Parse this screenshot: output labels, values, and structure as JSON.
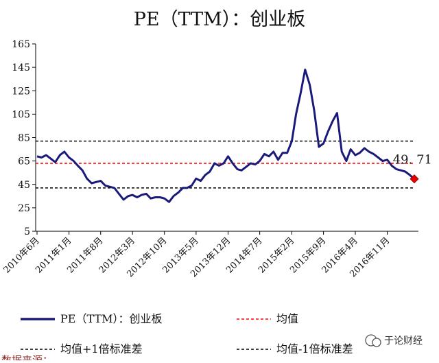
{
  "chart_data": {
    "type": "line",
    "title": "PE（TTM）：创业板",
    "ylim": [
      5,
      165
    ],
    "yticks": [
      165,
      145,
      125,
      105,
      85,
      65,
      45,
      25,
      5
    ],
    "xticks": [
      "2010年6月",
      "2011年1月",
      "2011年8月",
      "2012年3月",
      "2012年10月",
      "2013年5月",
      "2013年12月",
      "2014年7月",
      "2015年2月",
      "2015年9月",
      "2016年4月",
      "2016年11月"
    ],
    "x_start": "2010-06",
    "x_end": "2017-05",
    "grid": false,
    "legend_position": "bottom",
    "series": [
      {
        "name": "PE（TTM）：创业板",
        "color": "#1a1a7a",
        "points": [
          [
            "2010-06-01",
            69
          ],
          [
            "2010-07-01",
            68
          ],
          [
            "2010-08-01",
            70
          ],
          [
            "2010-09-01",
            67
          ],
          [
            "2010-10-01",
            64
          ],
          [
            "2010-11-01",
            70
          ],
          [
            "2010-12-01",
            73
          ],
          [
            "2011-01-01",
            68
          ],
          [
            "2011-02-01",
            65
          ],
          [
            "2011-03-01",
            61
          ],
          [
            "2011-04-01",
            57
          ],
          [
            "2011-05-01",
            50
          ],
          [
            "2011-06-01",
            46
          ],
          [
            "2011-07-01",
            47
          ],
          [
            "2011-08-01",
            48
          ],
          [
            "2011-09-01",
            44
          ],
          [
            "2011-10-01",
            43
          ],
          [
            "2011-11-01",
            42
          ],
          [
            "2011-12-01",
            37
          ],
          [
            "2012-01-01",
            32
          ],
          [
            "2012-02-01",
            35
          ],
          [
            "2012-03-01",
            36
          ],
          [
            "2012-04-01",
            34
          ],
          [
            "2012-05-01",
            36
          ],
          [
            "2012-06-01",
            37
          ],
          [
            "2012-07-01",
            33
          ],
          [
            "2012-08-01",
            34
          ],
          [
            "2012-09-01",
            34
          ],
          [
            "2012-10-01",
            33
          ],
          [
            "2012-11-01",
            30
          ],
          [
            "2012-12-01",
            35
          ],
          [
            "2013-01-01",
            38
          ],
          [
            "2013-02-01",
            42
          ],
          [
            "2013-03-01",
            42
          ],
          [
            "2013-04-01",
            44
          ],
          [
            "2013-05-01",
            50
          ],
          [
            "2013-06-01",
            48
          ],
          [
            "2013-07-01",
            53
          ],
          [
            "2013-08-01",
            56
          ],
          [
            "2013-09-01",
            63
          ],
          [
            "2013-10-01",
            61
          ],
          [
            "2013-11-01",
            63
          ],
          [
            "2013-12-01",
            69
          ],
          [
            "2014-01-01",
            63
          ],
          [
            "2014-02-01",
            58
          ],
          [
            "2014-03-01",
            57
          ],
          [
            "2014-04-01",
            60
          ],
          [
            "2014-05-01",
            63
          ],
          [
            "2014-06-01",
            62
          ],
          [
            "2014-07-01",
            65
          ],
          [
            "2014-08-01",
            71
          ],
          [
            "2014-09-01",
            69
          ],
          [
            "2014-10-01",
            73
          ],
          [
            "2014-11-01",
            66
          ],
          [
            "2014-12-01",
            72
          ],
          [
            "2015-01-01",
            72
          ],
          [
            "2015-02-01",
            82
          ],
          [
            "2015-03-01",
            105
          ],
          [
            "2015-04-01",
            123
          ],
          [
            "2015-05-01",
            143
          ],
          [
            "2015-06-01",
            130
          ],
          [
            "2015-07-01",
            108
          ],
          [
            "2015-08-01",
            77
          ],
          [
            "2015-09-01",
            80
          ],
          [
            "2015-10-01",
            90
          ],
          [
            "2015-11-01",
            99
          ],
          [
            "2015-12-01",
            106
          ],
          [
            "2016-01-01",
            73
          ],
          [
            "2016-02-01",
            65
          ],
          [
            "2016-03-01",
            75
          ],
          [
            "2016-04-01",
            70
          ],
          [
            "2016-05-01",
            72
          ],
          [
            "2016-06-01",
            76
          ],
          [
            "2016-07-01",
            73
          ],
          [
            "2016-08-01",
            71
          ],
          [
            "2016-09-01",
            68
          ],
          [
            "2016-10-01",
            65
          ],
          [
            "2016-11-01",
            66
          ],
          [
            "2016-12-01",
            61
          ],
          [
            "2017-01-01",
            58
          ],
          [
            "2017-02-01",
            57
          ],
          [
            "2017-03-01",
            56
          ],
          [
            "2017-04-01",
            53
          ],
          [
            "2017-05-01",
            49.71
          ]
        ]
      },
      {
        "name": "均值",
        "color": "#ff0000",
        "dash": "4,3",
        "value": 63
      },
      {
        "name": "均值+1倍标准差",
        "color": "#000000",
        "dash": "4,3",
        "value": 82
      },
      {
        "name": "均值-1倍标准差",
        "color": "#000000",
        "dash": "4,3",
        "value": 42
      }
    ],
    "last_value_label": "49. 71",
    "marker_color": "#e60000"
  },
  "watermark": {
    "text": "于论财经"
  },
  "footer": {
    "text": "数据来源："
  }
}
